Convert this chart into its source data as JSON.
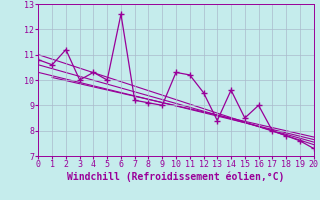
{
  "xlabel": "Windchill (Refroidissement éolien,°C)",
  "xlim": [
    0,
    20
  ],
  "ylim": [
    7,
    13
  ],
  "yticks": [
    7,
    8,
    9,
    10,
    11,
    12,
    13
  ],
  "xticks": [
    0,
    1,
    2,
    3,
    4,
    5,
    6,
    7,
    8,
    9,
    10,
    11,
    12,
    13,
    14,
    15,
    16,
    17,
    18,
    19,
    20
  ],
  "bg_color": "#c5ecec",
  "line_color": "#990099",
  "grid_color": "#aabbcc",
  "data_x": [
    0,
    1,
    2,
    3,
    4,
    5,
    6,
    7,
    8,
    9,
    10,
    11,
    12,
    13,
    14,
    15,
    16,
    17,
    18,
    19,
    20
  ],
  "data_y": [
    10.8,
    10.6,
    11.2,
    10.0,
    10.3,
    10.0,
    12.6,
    9.2,
    9.1,
    9.0,
    10.3,
    10.2,
    9.5,
    8.4,
    9.6,
    8.5,
    9.0,
    8.0,
    7.8,
    7.6,
    7.3
  ],
  "trend_lines": [
    {
      "x0": 0,
      "y0": 11.0,
      "x1": 20,
      "y1": 7.45
    },
    {
      "x0": 0,
      "y0": 10.6,
      "x1": 20,
      "y1": 7.55
    },
    {
      "x0": 0,
      "y0": 10.3,
      "x1": 20,
      "y1": 7.65
    },
    {
      "x0": 1,
      "y0": 10.1,
      "x1": 20,
      "y1": 7.75
    }
  ],
  "line_width": 0.9,
  "marker_size": 4,
  "xlabel_fontsize": 7
}
